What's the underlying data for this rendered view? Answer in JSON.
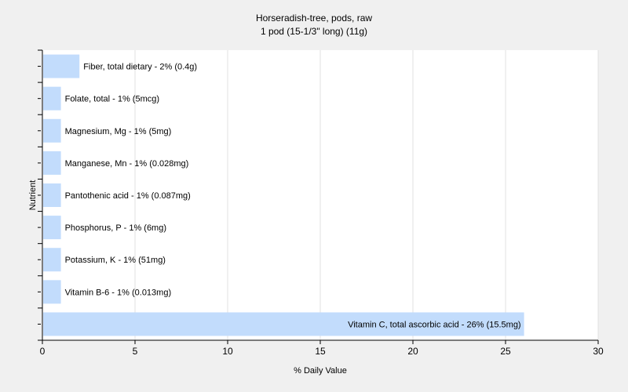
{
  "chart_data": {
    "type": "bar",
    "orientation": "horizontal",
    "title": "Horseradish-tree, pods, raw",
    "subtitle": "1 pod (15-1/3\" long) (11g)",
    "xlabel": "% Daily Value",
    "ylabel": "Nutrient",
    "xlim": [
      0,
      30
    ],
    "xticks": [
      0,
      5,
      10,
      15,
      20,
      25,
      30
    ],
    "grid": true,
    "bar_color": "#c2dcfc",
    "categories": [
      "Fiber, total dietary",
      "Folate, total",
      "Magnesium, Mg",
      "Manganese, Mn",
      "Pantothenic acid",
      "Phosphorus, P",
      "Potassium, K",
      "Vitamin B-6",
      "Vitamin C, total ascorbic acid"
    ],
    "values": [
      2,
      1,
      1,
      1,
      1,
      1,
      1,
      1,
      26
    ],
    "labels": [
      "Fiber, total dietary - 2% (0.4g)",
      "Folate, total - 1% (5mcg)",
      "Magnesium, Mg - 1% (5mg)",
      "Manganese, Mn - 1% (0.028mg)",
      "Pantothenic acid - 1% (0.087mg)",
      "Phosphorus, P - 1% (6mg)",
      "Potassium, K - 1% (51mg)",
      "Vitamin B-6 - 1% (0.013mg)",
      "Vitamin C, total ascorbic acid - 26% (15.5mg)"
    ]
  }
}
